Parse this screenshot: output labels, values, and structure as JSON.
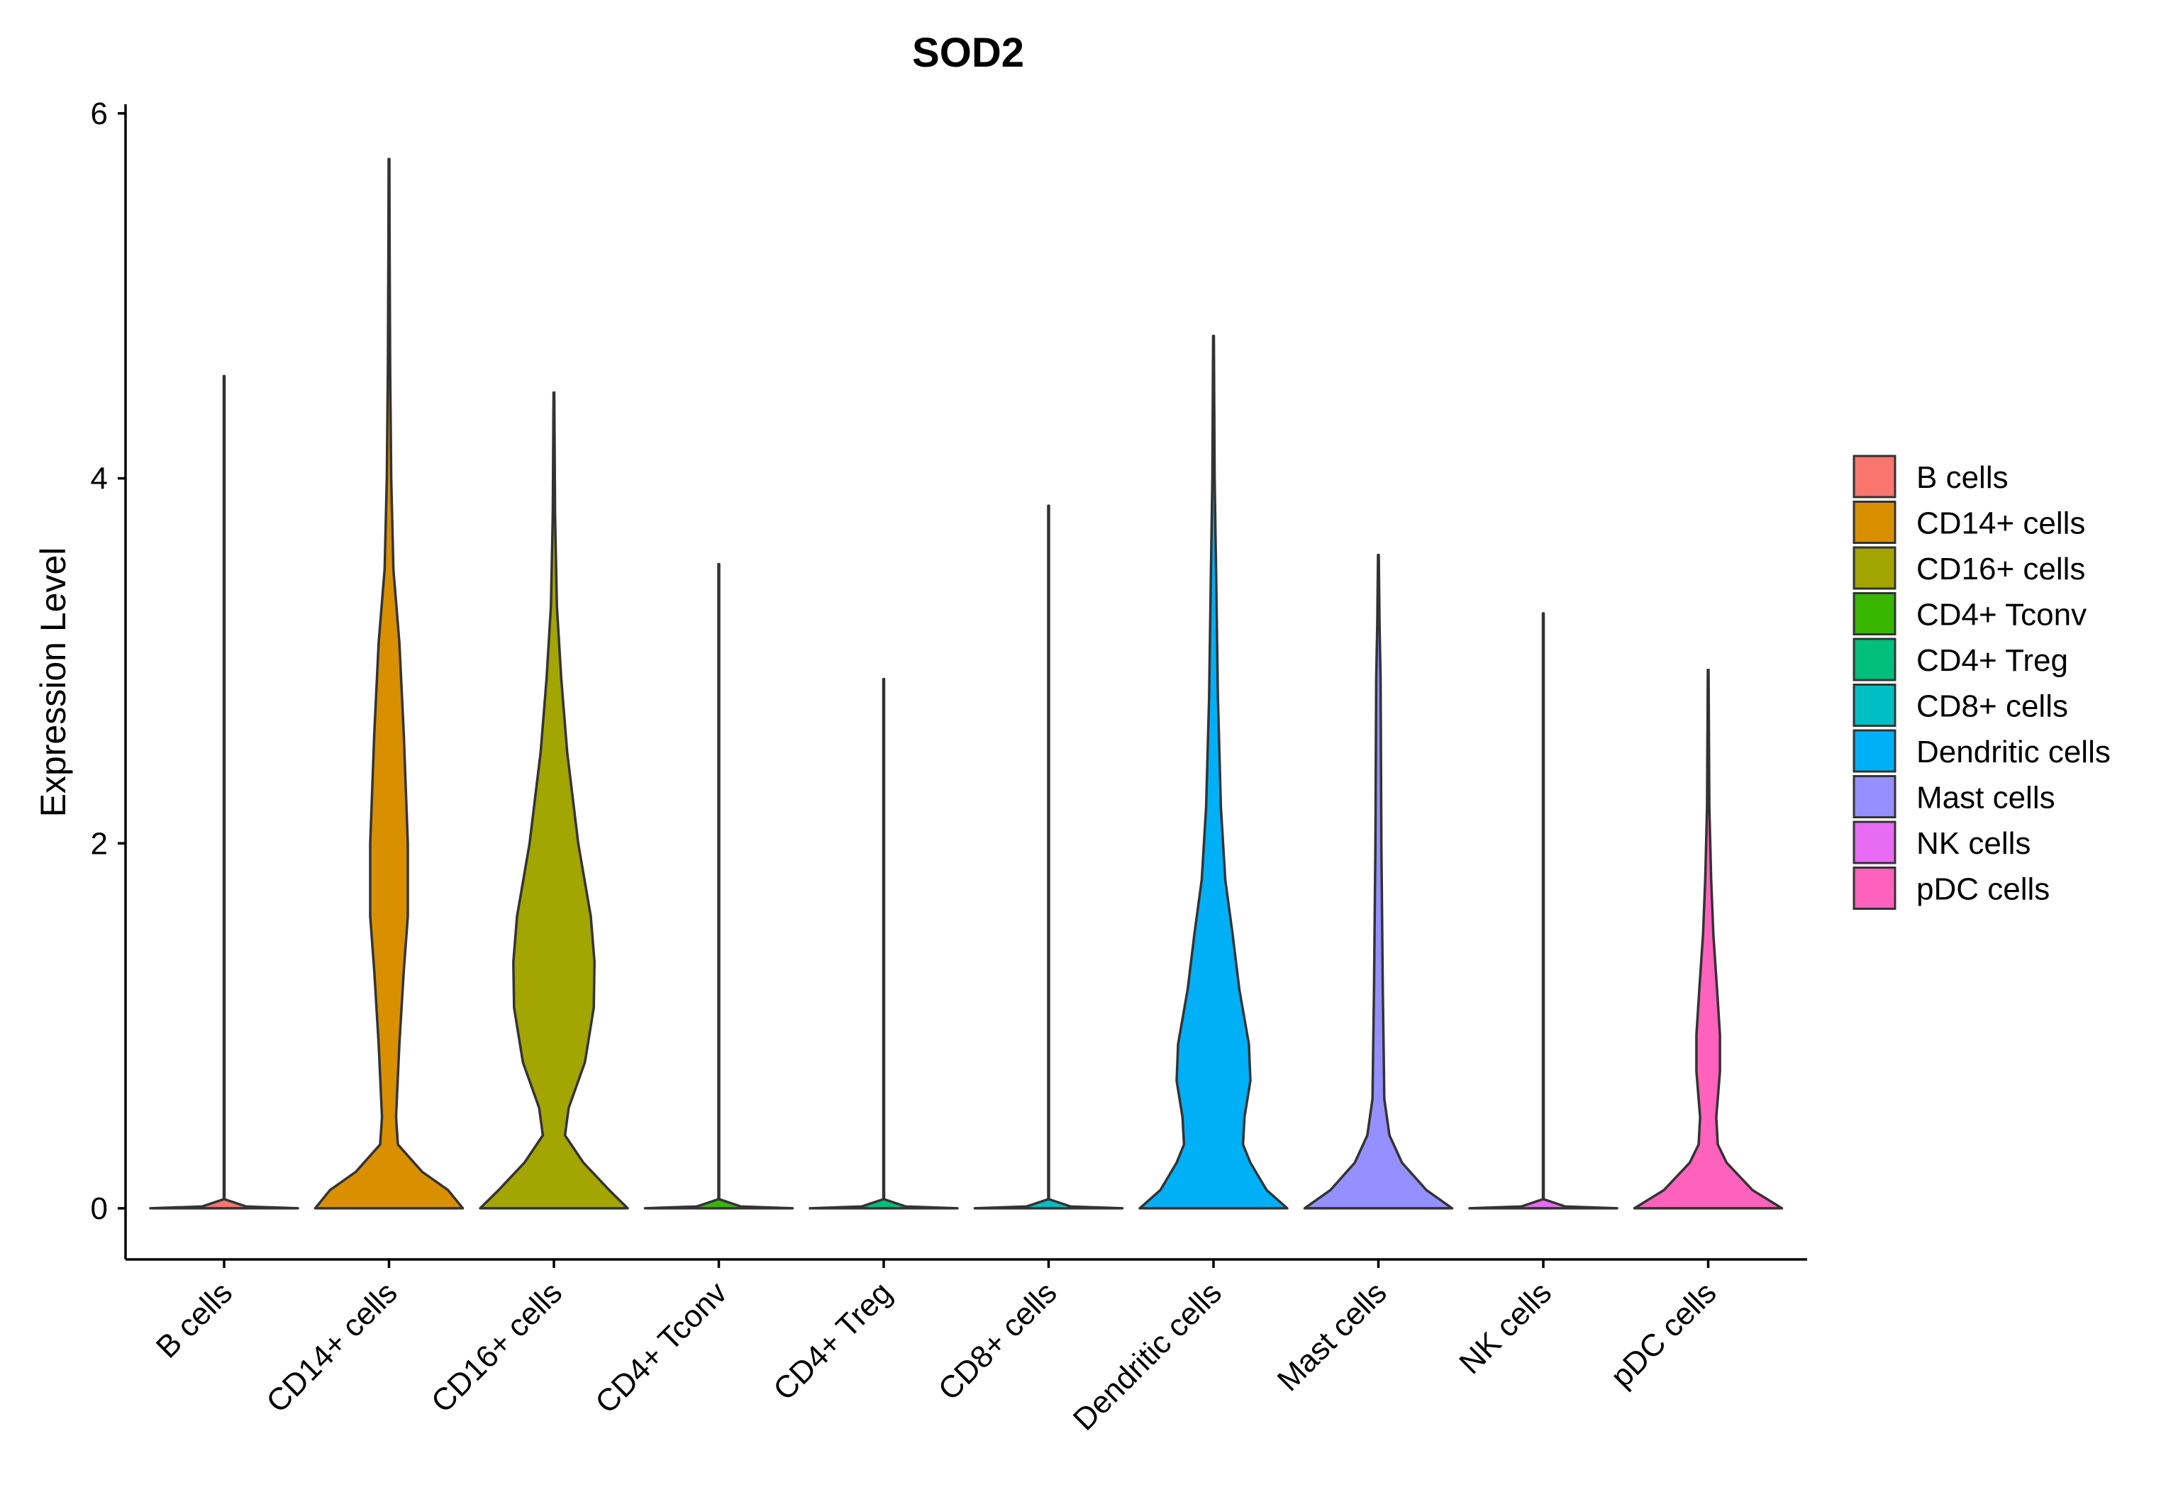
{
  "chart_data": {
    "type": "violin",
    "title": "SOD2",
    "xlabel": "",
    "ylabel": "Expression Level",
    "ylim": [
      -0.28,
      6.05
    ],
    "yticks": [
      0,
      2,
      4,
      6
    ],
    "ytick_labels": [
      "0",
      "2",
      "4",
      "6"
    ],
    "legend_position": "right",
    "categories": [
      "B cells",
      "CD14+ cells",
      "CD16+ cells",
      "CD4+ Tconv",
      "CD4+ Treg",
      "CD8+ cells",
      "Dendritic cells",
      "Mast cells",
      "NK cells",
      "pDC cells"
    ],
    "series": [
      {
        "name": "B cells",
        "color": "#F8766D",
        "max": 4.56,
        "density": [
          [
            0,
            1.0
          ],
          [
            0.01,
            0.3
          ],
          [
            0.05,
            0.005
          ],
          [
            4.56,
            0.005
          ]
        ]
      },
      {
        "name": "CD14+ cells",
        "color": "#D89000",
        "max": 5.75,
        "density": [
          [
            0,
            1.0
          ],
          [
            0.1,
            0.8
          ],
          [
            0.2,
            0.45
          ],
          [
            0.35,
            0.12
          ],
          [
            0.5,
            0.095
          ],
          [
            0.9,
            0.14
          ],
          [
            1.3,
            0.2
          ],
          [
            1.6,
            0.255
          ],
          [
            2.0,
            0.255
          ],
          [
            2.6,
            0.2
          ],
          [
            3.1,
            0.14
          ],
          [
            3.5,
            0.06
          ],
          [
            4.0,
            0.03
          ],
          [
            4.6,
            0.015
          ],
          [
            5.3,
            0.008
          ],
          [
            5.75,
            0.005
          ]
        ]
      },
      {
        "name": "CD16+ cells",
        "color": "#A3A500",
        "max": 4.47,
        "density": [
          [
            0,
            1.0
          ],
          [
            0.1,
            0.75
          ],
          [
            0.25,
            0.4
          ],
          [
            0.4,
            0.15
          ],
          [
            0.55,
            0.2
          ],
          [
            0.8,
            0.42
          ],
          [
            1.1,
            0.54
          ],
          [
            1.35,
            0.55
          ],
          [
            1.6,
            0.5
          ],
          [
            2.0,
            0.33
          ],
          [
            2.5,
            0.18
          ],
          [
            2.9,
            0.1
          ],
          [
            3.3,
            0.04
          ],
          [
            3.8,
            0.015
          ],
          [
            4.47,
            0.005
          ]
        ]
      },
      {
        "name": "CD4+ Tconv",
        "color": "#39B600",
        "max": 3.53,
        "density": [
          [
            0,
            1.0
          ],
          [
            0.01,
            0.3
          ],
          [
            0.05,
            0.005
          ],
          [
            3.53,
            0.005
          ]
        ]
      },
      {
        "name": "CD4+ Treg",
        "color": "#00BF7D",
        "max": 2.9,
        "density": [
          [
            0,
            1.0
          ],
          [
            0.01,
            0.3
          ],
          [
            0.05,
            0.005
          ],
          [
            2.9,
            0.005
          ]
        ]
      },
      {
        "name": "CD8+ cells",
        "color": "#00BFC4",
        "max": 3.85,
        "density": [
          [
            0,
            1.0
          ],
          [
            0.01,
            0.3
          ],
          [
            0.05,
            0.005
          ],
          [
            3.85,
            0.005
          ]
        ]
      },
      {
        "name": "Dendritic cells",
        "color": "#00B0F6",
        "max": 4.78,
        "density": [
          [
            0,
            1.0
          ],
          [
            0.1,
            0.72
          ],
          [
            0.25,
            0.5
          ],
          [
            0.35,
            0.4
          ],
          [
            0.5,
            0.42
          ],
          [
            0.7,
            0.5
          ],
          [
            0.9,
            0.48
          ],
          [
            1.2,
            0.35
          ],
          [
            1.5,
            0.26
          ],
          [
            1.8,
            0.16
          ],
          [
            2.2,
            0.1
          ],
          [
            2.8,
            0.06
          ],
          [
            3.5,
            0.035
          ],
          [
            4.0,
            0.015
          ],
          [
            4.78,
            0.005
          ]
        ]
      },
      {
        "name": "Mast cells",
        "color": "#9590FF",
        "max": 3.58,
        "density": [
          [
            0,
            1.0
          ],
          [
            0.1,
            0.65
          ],
          [
            0.25,
            0.32
          ],
          [
            0.4,
            0.15
          ],
          [
            0.6,
            0.08
          ],
          [
            0.9,
            0.07
          ],
          [
            1.2,
            0.06
          ],
          [
            1.6,
            0.05
          ],
          [
            2.0,
            0.04
          ],
          [
            2.5,
            0.035
          ],
          [
            2.9,
            0.03
          ],
          [
            3.2,
            0.015
          ],
          [
            3.58,
            0.005
          ]
        ]
      },
      {
        "name": "NK cells",
        "color": "#E76BF3",
        "max": 3.26,
        "density": [
          [
            0,
            1.0
          ],
          [
            0.01,
            0.3
          ],
          [
            0.05,
            0.005
          ],
          [
            3.26,
            0.005
          ]
        ]
      },
      {
        "name": "pDC cells",
        "color": "#FF62BC",
        "max": 2.95,
        "density": [
          [
            0,
            1.0
          ],
          [
            0.1,
            0.6
          ],
          [
            0.25,
            0.25
          ],
          [
            0.35,
            0.13
          ],
          [
            0.5,
            0.11
          ],
          [
            0.75,
            0.16
          ],
          [
            0.95,
            0.16
          ],
          [
            1.2,
            0.12
          ],
          [
            1.5,
            0.07
          ],
          [
            1.8,
            0.04
          ],
          [
            2.2,
            0.015
          ],
          [
            2.95,
            0.005
          ]
        ]
      }
    ]
  }
}
